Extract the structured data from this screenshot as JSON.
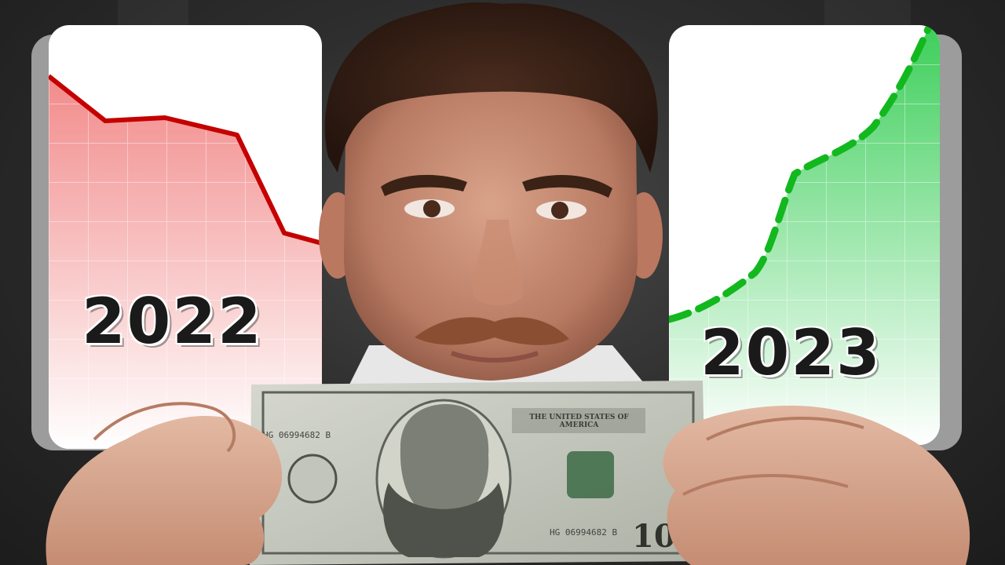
{
  "thumbnail": {
    "left_card": {
      "year": "2022",
      "trend": "down",
      "color": "#e53935"
    },
    "right_card": {
      "year": "2023",
      "trend": "up",
      "color": "#22c55e"
    }
  },
  "bill": {
    "serial_left": "HG 06994682 B",
    "serial_right": "HG 06994682 B",
    "denomination": "100",
    "header": "THE UNITED STATES OF AMERICA"
  }
}
